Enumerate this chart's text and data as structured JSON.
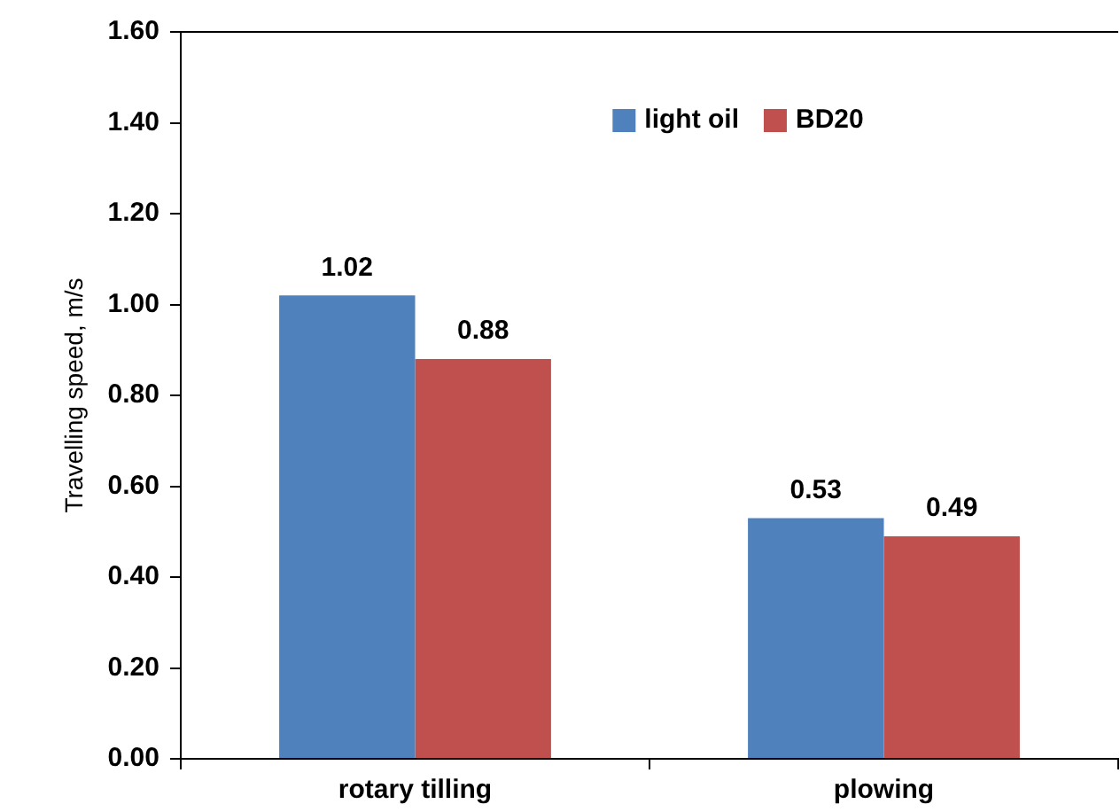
{
  "chart_data": {
    "type": "bar",
    "ylabel": "Travelling speed, m/s",
    "categories": [
      "rotary tilling",
      "plowing"
    ],
    "series": [
      {
        "name": "light oil",
        "color": "#4f81bd",
        "values": [
          1.02,
          0.53
        ]
      },
      {
        "name": "BD20",
        "color": "#c0504d",
        "values": [
          0.88,
          0.49
        ]
      }
    ],
    "ylim": [
      0,
      1.6
    ],
    "yticks": [
      {
        "value": 0,
        "label": "0.00"
      },
      {
        "value": 0.2,
        "label": "0.20"
      },
      {
        "value": 0.4,
        "label": "0.40"
      },
      {
        "value": 0.6,
        "label": "0.60"
      },
      {
        "value": 0.8,
        "label": "0.80"
      },
      {
        "value": 1.0,
        "label": "1.00"
      },
      {
        "value": 1.2,
        "label": "1.20"
      },
      {
        "value": 1.4,
        "label": "1.40"
      },
      {
        "value": 1.6,
        "label": "1.60"
      }
    ],
    "data_labels": true,
    "grid": false,
    "legend": "top"
  }
}
